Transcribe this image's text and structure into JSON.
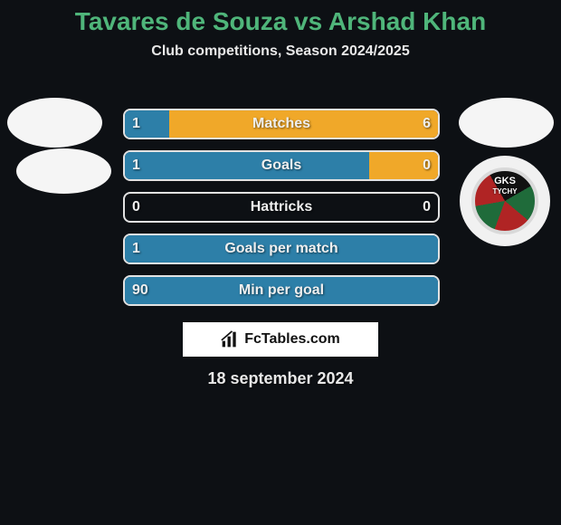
{
  "title": "Tavares de Souza vs Arshad Khan",
  "title_color": "#4fb57a",
  "title_fontsize": 28,
  "subtitle": "Club competitions, Season 2024/2025",
  "subtitle_color": "#e8e8e8",
  "subtitle_fontsize": 16,
  "text_color_on_bar": "#efefef",
  "value_fontsize": 16,
  "label_fontsize": 16,
  "bar_colors": {
    "left_fill": "#2d7fa8",
    "right_fill": "#f0a829",
    "border": "#e2e2e2",
    "empty": "transparent"
  },
  "rows": [
    {
      "label": "Matches",
      "left_val": "1",
      "right_val": "6",
      "left_pct": 14.3,
      "right_pct": 85.7
    },
    {
      "label": "Goals",
      "left_val": "1",
      "right_val": "0",
      "left_pct": 100,
      "right_pct": 0,
      "right_fill_override": "#f0a829",
      "right_override_width_pct": 22
    },
    {
      "label": "Hattricks",
      "left_val": "0",
      "right_val": "0",
      "left_pct": 0,
      "right_pct": 0
    },
    {
      "label": "Goals per match",
      "left_val": "1",
      "right_val": "",
      "left_pct": 100,
      "right_pct": 0
    },
    {
      "label": "Min per goal",
      "left_val": "90",
      "right_val": "",
      "left_pct": 100,
      "right_pct": 0
    }
  ],
  "club_badge": {
    "top_text": "GKS",
    "bottom_text": "TYCHY"
  },
  "branding": "FcTables.com",
  "date": "18 september 2024",
  "date_color": "#e8e8e8",
  "date_fontsize": 18,
  "background_color": "#0d1014"
}
